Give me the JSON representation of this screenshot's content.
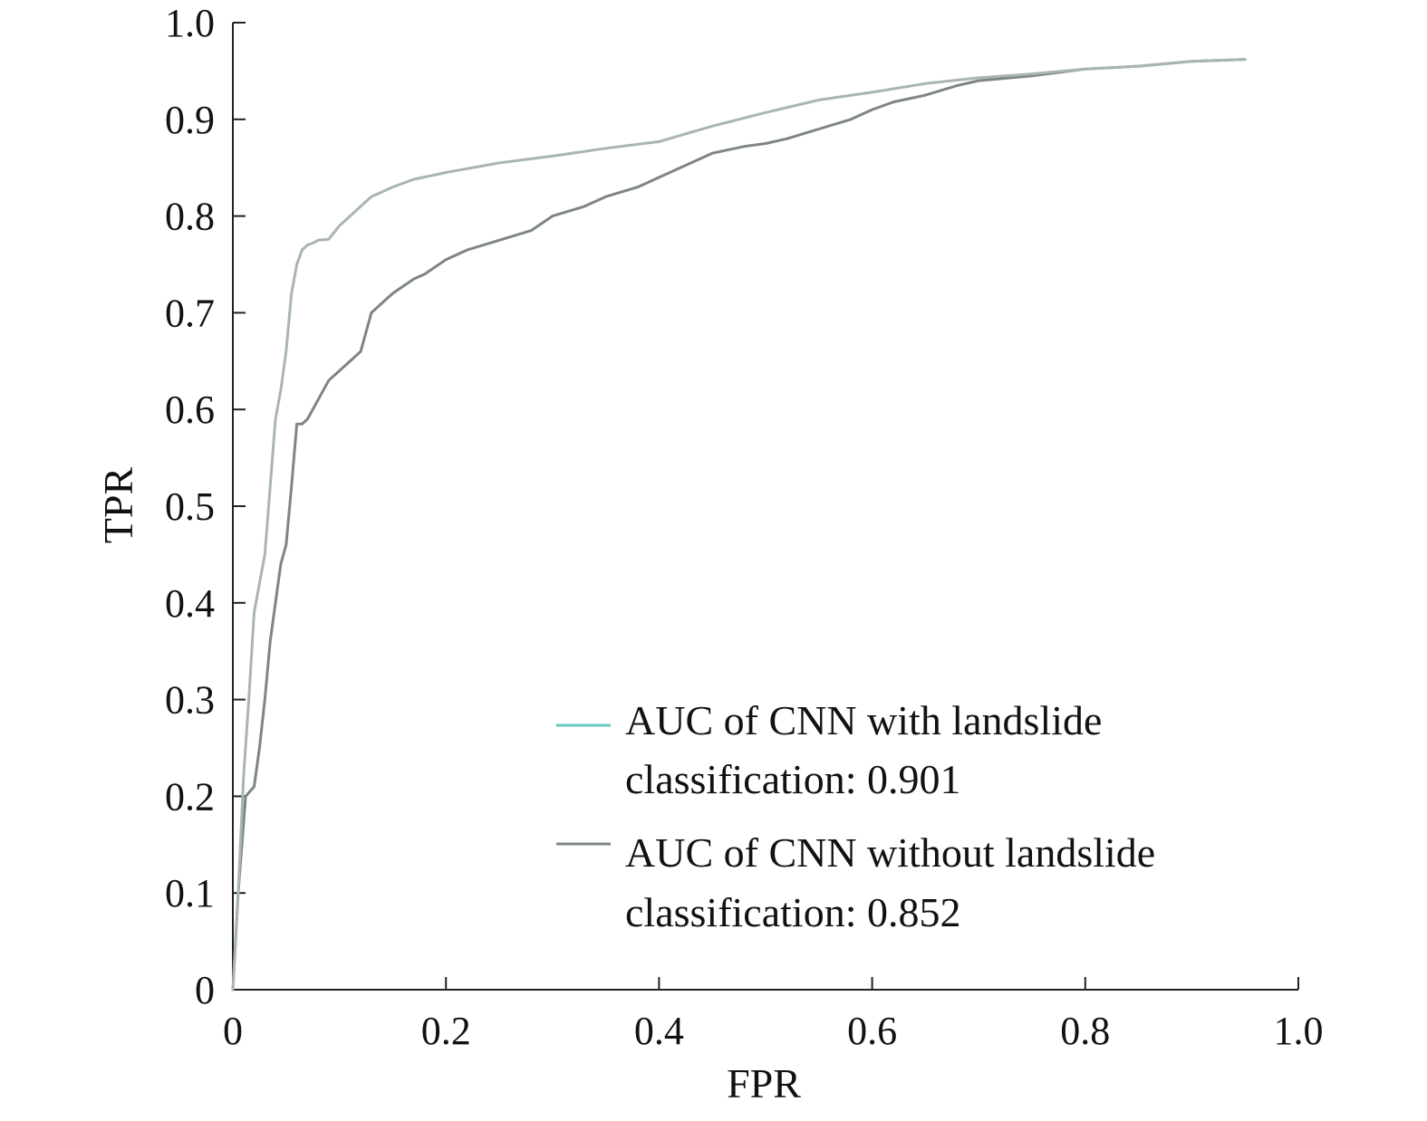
{
  "chart_data": {
    "type": "line",
    "title": "",
    "xlabel": "FPR",
    "ylabel": "TPR",
    "xlim": [
      0,
      1.0
    ],
    "ylim": [
      0,
      1.0
    ],
    "x_ticks": [
      "0",
      "0.2",
      "0.4",
      "0.6",
      "0.8",
      "1.0"
    ],
    "y_ticks": [
      "0",
      "0.1",
      "0.2",
      "0.3",
      "0.4",
      "0.5",
      "0.6",
      "0.7",
      "0.8",
      "0.9",
      "1.0"
    ],
    "grid": false,
    "legend_position": "bottom-right",
    "series": [
      {
        "name_lines": [
          "AUC of CNN with landslide",
          "classification: 0.901"
        ],
        "color": "#a9b4b4",
        "legend_swatch_color": "#66c9be",
        "x": [
          0.0,
          0.005,
          0.01,
          0.015,
          0.02,
          0.025,
          0.03,
          0.035,
          0.04,
          0.045,
          0.05,
          0.055,
          0.06,
          0.065,
          0.07,
          0.075,
          0.08,
          0.09,
          0.1,
          0.11,
          0.12,
          0.13,
          0.14,
          0.15,
          0.17,
          0.2,
          0.25,
          0.3,
          0.35,
          0.4,
          0.45,
          0.5,
          0.55,
          0.6,
          0.65,
          0.7,
          0.75,
          0.8,
          0.85,
          0.9,
          0.95
        ],
        "y": [
          0.0,
          0.1,
          0.22,
          0.3,
          0.39,
          0.42,
          0.45,
          0.52,
          0.59,
          0.62,
          0.66,
          0.72,
          0.75,
          0.765,
          0.77,
          0.772,
          0.775,
          0.776,
          0.79,
          0.8,
          0.81,
          0.82,
          0.825,
          0.83,
          0.838,
          0.845,
          0.855,
          0.862,
          0.87,
          0.877,
          0.893,
          0.907,
          0.92,
          0.928,
          0.937,
          0.943,
          0.947,
          0.952,
          0.955,
          0.96,
          0.962
        ]
      },
      {
        "name_lines": [
          "AUC of CNN without landslide",
          "classification: 0.852"
        ],
        "color": "#7e8585",
        "legend_swatch_color": "#7e8585",
        "x": [
          0.0,
          0.005,
          0.012,
          0.02,
          0.025,
          0.03,
          0.035,
          0.04,
          0.045,
          0.05,
          0.055,
          0.06,
          0.065,
          0.07,
          0.08,
          0.09,
          0.1,
          0.12,
          0.13,
          0.15,
          0.17,
          0.18,
          0.2,
          0.22,
          0.25,
          0.28,
          0.3,
          0.33,
          0.35,
          0.38,
          0.4,
          0.43,
          0.45,
          0.48,
          0.5,
          0.52,
          0.55,
          0.58,
          0.6,
          0.62,
          0.65,
          0.68,
          0.7,
          0.75,
          0.8,
          0.85,
          0.9,
          0.95
        ],
        "y": [
          0.0,
          0.1,
          0.2,
          0.21,
          0.25,
          0.3,
          0.36,
          0.4,
          0.44,
          0.46,
          0.52,
          0.585,
          0.585,
          0.59,
          0.61,
          0.63,
          0.64,
          0.66,
          0.7,
          0.72,
          0.735,
          0.74,
          0.755,
          0.765,
          0.775,
          0.785,
          0.8,
          0.81,
          0.82,
          0.83,
          0.84,
          0.855,
          0.865,
          0.872,
          0.875,
          0.88,
          0.89,
          0.9,
          0.91,
          0.918,
          0.925,
          0.935,
          0.94,
          0.945,
          0.952,
          0.955,
          0.96,
          0.962
        ]
      }
    ]
  }
}
